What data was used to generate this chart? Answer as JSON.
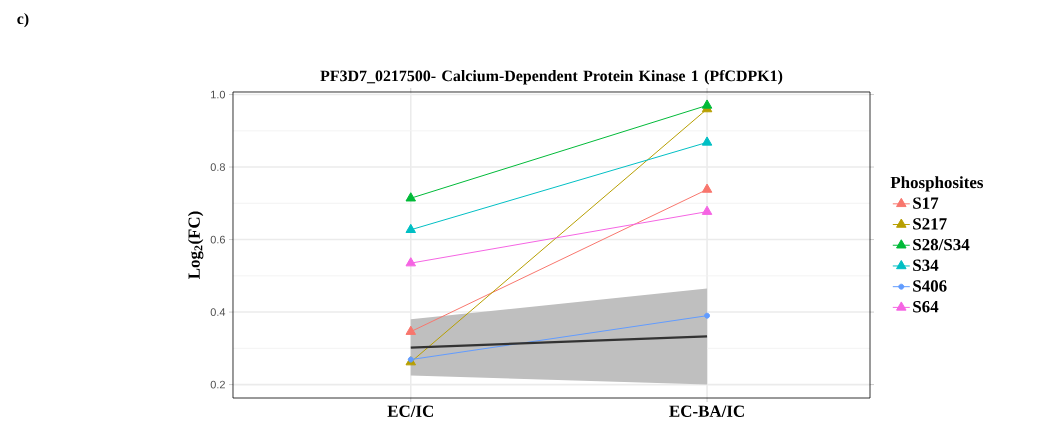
{
  "chart_data": {
    "type": "line",
    "title": "PF3D7_0217500- Calcium-Dependent Protein Kinase 1 (PfCDPK1)",
    "ylabel": "Log$_{2}$(FC)",
    "legend_title": "Phosphosites",
    "annotations": [
      "c)"
    ],
    "categories": [
      "EC/IC",
      "EC-BA/IC"
    ],
    "series": [
      {
        "name": "S17",
        "color": "#f8766d",
        "values": [
          0.346,
          0.738
        ],
        "marker": "triangle"
      },
      {
        "name": "S217",
        "color": "#b79f00",
        "values": [
          0.262,
          0.96
        ],
        "marker": "triangle"
      },
      {
        "name": "S28/S34",
        "color": "#00ba38",
        "values": [
          0.714,
          0.97
        ],
        "marker": "triangle"
      },
      {
        "name": "S34",
        "color": "#00bfc4",
        "values": [
          0.627,
          0.868
        ],
        "marker": "triangle"
      },
      {
        "name": "S406",
        "color": "#619cff",
        "values": [
          0.269,
          0.39
        ],
        "marker": "circle"
      },
      {
        "name": "S64",
        "color": "#f564e3",
        "values": [
          0.535,
          0.677
        ],
        "marker": "triangle"
      },
      {
        "color": "#333333",
        "values": [
          0.302,
          0.333
        ],
        "lower": [
          0.225,
          0.2
        ],
        "upper": [
          0.38,
          0.465
        ],
        "marker": "none"
      }
    ],
    "ylim": [
      0.163,
      1.007
    ],
    "yticks": [
      0.2,
      0.4,
      0.6,
      0.8,
      {
        "value": 1.0,
        "label": "1.0"
      }
    ],
    "grid": true,
    "legend": "right",
    "line_style": "solid"
  }
}
